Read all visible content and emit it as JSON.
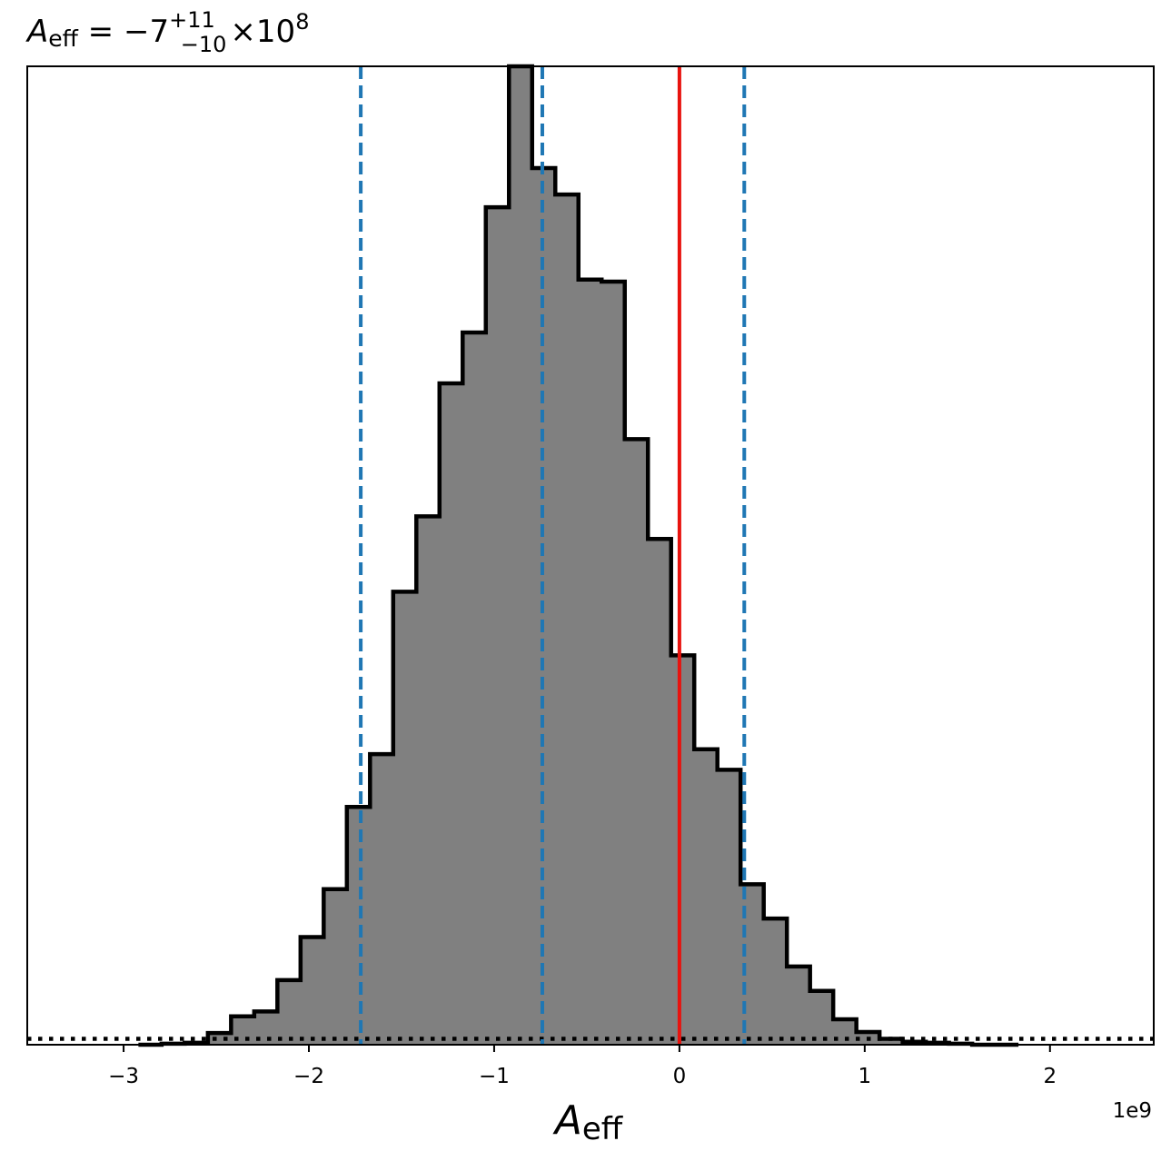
{
  "chart_data": {
    "type": "histogram",
    "title": {
      "base": "A",
      "sub": "eff",
      "rest": " = −7",
      "sup": "+11",
      "lower": "−10",
      "tail": "×10",
      "exp": "8"
    },
    "xlabel": {
      "base": "A",
      "sub": "eff"
    },
    "offset_text": "1e9",
    "xlim": [
      -3.52,
      2.56
    ],
    "ylim": [
      0,
      1.0
    ],
    "x_ticks": [
      {
        "value": -3,
        "label": "−3"
      },
      {
        "value": -2,
        "label": "−2"
      },
      {
        "value": -1,
        "label": "−1"
      },
      {
        "value": 0,
        "label": "0"
      },
      {
        "value": 1,
        "label": "1"
      },
      {
        "value": 2,
        "label": "2"
      }
    ],
    "bin_edges": [
      -2.92,
      -2.795,
      -2.67,
      -2.545,
      -2.42,
      -2.295,
      -2.17,
      -2.045,
      -1.92,
      -1.795,
      -1.67,
      -1.545,
      -1.42,
      -1.295,
      -1.17,
      -1.045,
      -0.92,
      -0.795,
      -0.67,
      -0.545,
      -0.42,
      -0.295,
      -0.17,
      -0.045,
      0.08,
      0.205,
      0.33,
      0.455,
      0.58,
      0.705,
      0.83,
      0.955,
      1.08,
      1.205,
      1.33,
      1.455,
      1.58,
      1.705,
      1.83
    ],
    "bin_heights": [
      0.0,
      0.001,
      0.002,
      0.012,
      0.029,
      0.034,
      0.066,
      0.11,
      0.159,
      0.243,
      0.297,
      0.463,
      0.54,
      0.676,
      0.728,
      0.856,
      1.0,
      0.896,
      0.869,
      0.782,
      0.78,
      0.619,
      0.517,
      0.398,
      0.302,
      0.281,
      0.164,
      0.129,
      0.08,
      0.055,
      0.026,
      0.013,
      0.006,
      0.003,
      0.002,
      0.001,
      0.0,
      0.0
    ],
    "vertical_lines": [
      {
        "x": -1.72,
        "style": "dashed",
        "color": "#1f77b4"
      },
      {
        "x": -0.74,
        "style": "dashed",
        "color": "#1f77b4"
      },
      {
        "x": 0.35,
        "style": "dashed",
        "color": "#1f77b4"
      },
      {
        "x": 0.0,
        "style": "solid",
        "color": "#e8130e"
      }
    ],
    "prior_line": {
      "level": 0.006,
      "style": "dotted",
      "color": "#000000"
    },
    "fill_color": "#808080",
    "edge_color": "#000000",
    "grid": false,
    "legend": "none"
  }
}
